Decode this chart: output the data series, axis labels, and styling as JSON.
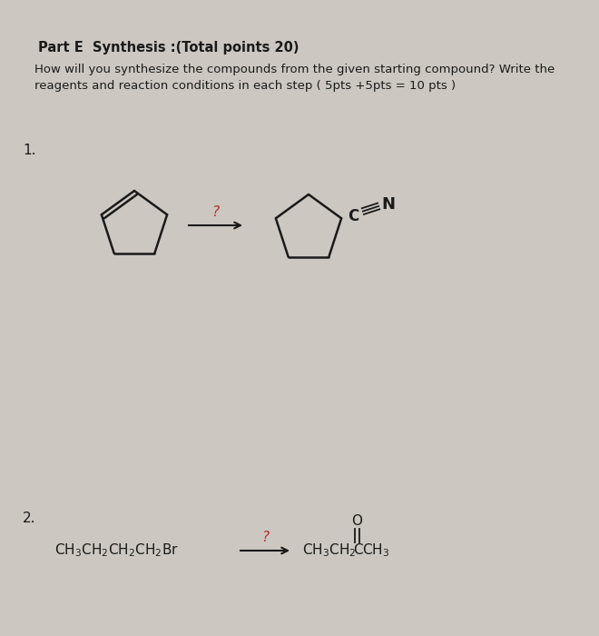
{
  "bg_color": "#ccc8c1",
  "text_color": "#1a1a1a",
  "title": "Part E  Synthesis :(Total points 20)",
  "subtitle_line1": "How will you synthesize the compounds from the given starting compound? Write the",
  "subtitle_line2": "reagents and reaction conditions in each step ( 5pts +5pts = 10 pts )",
  "label1": "1.",
  "label2": "2.",
  "question_color": "#b03030",
  "arrow_color": "#1a1a1a"
}
